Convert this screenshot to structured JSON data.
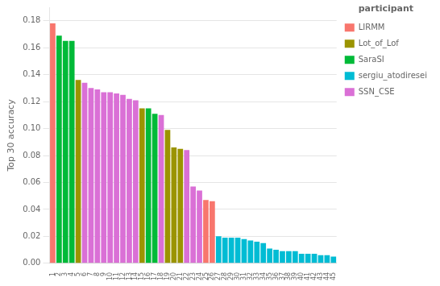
{
  "chart_data": {
    "type": "bar",
    "ylabel": "Top 30 accuracy",
    "legend_title": "participant",
    "categories": [
      "1",
      "2",
      "3",
      "4",
      "5",
      "6",
      "7",
      "8",
      "9",
      "10",
      "11",
      "12",
      "13",
      "14",
      "15",
      "16",
      "17",
      "18",
      "19",
      "20",
      "21",
      "22",
      "23",
      "24",
      "25",
      "26",
      "27",
      "28",
      "29",
      "30",
      "31",
      "32",
      "33",
      "34",
      "35",
      "36",
      "37",
      "38",
      "39",
      "40",
      "41",
      "42",
      "43",
      "44",
      "45"
    ],
    "series": [
      {
        "name": "LIRMM",
        "color": "#F8766D",
        "values": [
          0.178,
          null,
          null,
          null,
          null,
          null,
          null,
          null,
          null,
          null,
          null,
          null,
          null,
          null,
          null,
          null,
          null,
          null,
          null,
          null,
          null,
          null,
          null,
          null,
          0.047,
          0.046,
          null,
          null,
          null,
          null,
          null,
          null,
          null,
          null,
          null,
          null,
          null,
          null,
          null,
          null,
          null,
          null,
          null,
          null,
          null
        ]
      },
      {
        "name": "Lot_of_Lof",
        "color": "#9B9400",
        "values": [
          null,
          null,
          null,
          null,
          0.136,
          null,
          null,
          null,
          null,
          null,
          null,
          null,
          null,
          null,
          0.115,
          null,
          null,
          null,
          0.099,
          0.086,
          0.085,
          null,
          null,
          null,
          null,
          null,
          null,
          null,
          null,
          null,
          null,
          null,
          null,
          null,
          null,
          null,
          null,
          null,
          null,
          null,
          null,
          null,
          null,
          null,
          null
        ]
      },
      {
        "name": "SaraSI",
        "color": "#00BA38",
        "values": [
          null,
          0.169,
          0.165,
          0.165,
          null,
          null,
          null,
          null,
          null,
          null,
          null,
          null,
          null,
          null,
          null,
          0.115,
          0.111,
          null,
          null,
          null,
          null,
          null,
          null,
          null,
          null,
          null,
          null,
          null,
          null,
          null,
          null,
          null,
          null,
          null,
          null,
          null,
          null,
          null,
          null,
          null,
          null,
          null,
          null,
          null,
          null
        ]
      },
      {
        "name": "sergiu_atodiresei",
        "color": "#00BCD4",
        "values": [
          null,
          null,
          null,
          null,
          null,
          null,
          null,
          null,
          null,
          null,
          null,
          null,
          null,
          null,
          null,
          null,
          null,
          null,
          null,
          null,
          null,
          null,
          null,
          null,
          null,
          null,
          0.02,
          0.019,
          0.019,
          0.019,
          0.018,
          0.017,
          0.016,
          0.015,
          0.011,
          0.01,
          0.009,
          0.009,
          0.009,
          0.007,
          0.007,
          0.007,
          0.006,
          0.006,
          0.005
        ]
      },
      {
        "name": "SSN_CSE",
        "color": "#DA70D6",
        "values": [
          null,
          null,
          null,
          null,
          null,
          0.134,
          0.13,
          0.129,
          0.127,
          0.127,
          0.126,
          0.125,
          0.122,
          0.121,
          null,
          null,
          null,
          0.11,
          null,
          null,
          null,
          0.084,
          0.057,
          0.054,
          null,
          null,
          null,
          null,
          null,
          null,
          null,
          null,
          null,
          null,
          null,
          null,
          null,
          null,
          null,
          null,
          null,
          null,
          null,
          null,
          null
        ]
      }
    ],
    "ylim": [
      0,
      0.19
    ],
    "yticks": [
      {
        "value": 0.0,
        "label": "0.00"
      },
      {
        "value": 0.02,
        "label": "0.02"
      },
      {
        "value": 0.04,
        "label": "0.04"
      },
      {
        "value": 0.06,
        "label": "0.06"
      },
      {
        "value": 0.08,
        "label": "0.08"
      },
      {
        "value": 0.1,
        "label": "0.10"
      },
      {
        "value": 0.12,
        "label": "0.12"
      },
      {
        "value": 0.14,
        "label": "0.14"
      },
      {
        "value": 0.16,
        "label": "0.16"
      },
      {
        "value": 0.18,
        "label": "0.18"
      }
    ],
    "grid": "y",
    "legend": "right"
  }
}
